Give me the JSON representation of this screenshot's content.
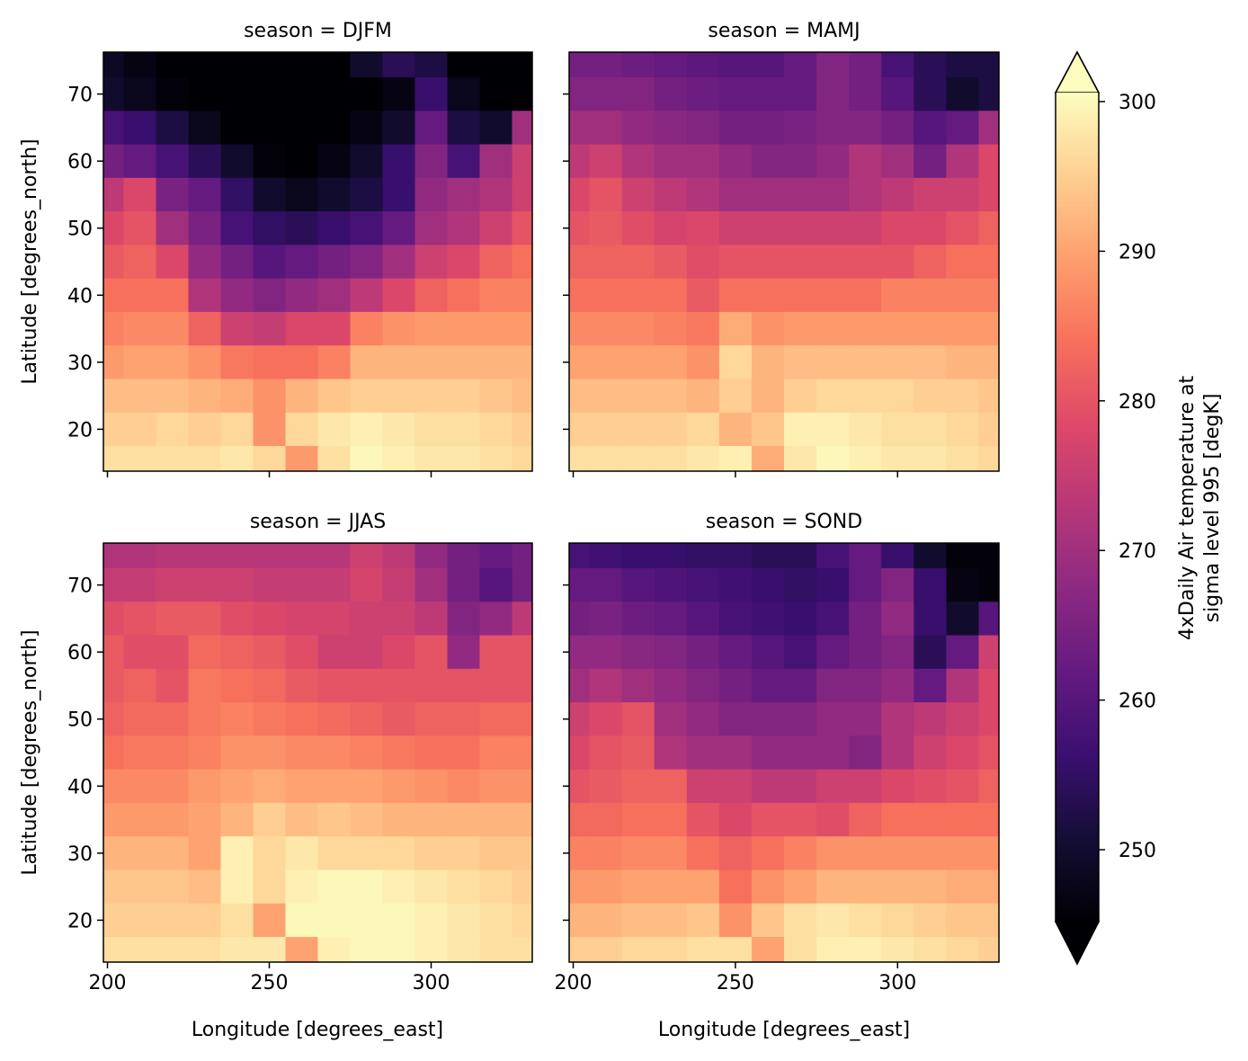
{
  "chart_data": {
    "type": "heatmap",
    "colormap": "magma",
    "vmin": 245.3,
    "vmax": 300.6,
    "extend": "both",
    "xlabel": "Longitude [degrees_east]",
    "ylabel": "Latitude [degrees_north]",
    "xticks": [
      200,
      250,
      300
    ],
    "yticks": [
      20,
      30,
      40,
      50,
      60,
      70
    ],
    "xlim": [
      198.75,
      331.25
    ],
    "ylim": [
      13.75,
      76.25
    ],
    "colorbar": {
      "label_lines": [
        "4xDaily Air temperature at",
        "sigma level 995 [degK]"
      ],
      "ticks": [
        250,
        260,
        270,
        280,
        290,
        300
      ]
    },
    "lon": [
      200,
      210,
      220,
      230,
      240,
      250,
      260,
      270,
      280,
      290,
      300,
      310,
      320,
      330
    ],
    "lat": [
      75,
      70,
      65,
      60,
      55,
      50,
      45,
      40,
      35,
      30,
      25,
      20,
      15
    ],
    "panels": [
      {
        "title": "season = DJFM",
        "values": [
          [
            249,
            247,
            245,
            245,
            245,
            245,
            245,
            245,
            250,
            254,
            252,
            245,
            245,
            245
          ],
          [
            250,
            248,
            246,
            245,
            245,
            245,
            245,
            245,
            245,
            247,
            256,
            248,
            245,
            245
          ],
          [
            258,
            256,
            252,
            248,
            245,
            245,
            245,
            245,
            247,
            250,
            262,
            252,
            250,
            270
          ],
          [
            264,
            262,
            258,
            254,
            250,
            246,
            245,
            247,
            250,
            256,
            266,
            258,
            270,
            276
          ],
          [
            274,
            278,
            265,
            262,
            255,
            250,
            248,
            250,
            252,
            256,
            268,
            270,
            272,
            276
          ],
          [
            278,
            280,
            270,
            265,
            258,
            255,
            254,
            256,
            258,
            262,
            270,
            272,
            276,
            280
          ],
          [
            281,
            282,
            278,
            268,
            264,
            260,
            262,
            264,
            266,
            270,
            276,
            278,
            282,
            284
          ],
          [
            284,
            284,
            284,
            272,
            268,
            266,
            268,
            270,
            274,
            278,
            282,
            284,
            286,
            286
          ],
          [
            286,
            287,
            287,
            282,
            276,
            275,
            278,
            278,
            286,
            288,
            289,
            289,
            289,
            289
          ],
          [
            289,
            290,
            290,
            288,
            285,
            284,
            284,
            286,
            292,
            292,
            292,
            292,
            292,
            292
          ],
          [
            293,
            293,
            293,
            292,
            291,
            288,
            292,
            294,
            295,
            295,
            295,
            295,
            294,
            293
          ],
          [
            295,
            295,
            296,
            295,
            296,
            288,
            296,
            298,
            299,
            298,
            297,
            297,
            296,
            295
          ],
          [
            297,
            297,
            297,
            297,
            298,
            296,
            289,
            297,
            300,
            299,
            298,
            298,
            297,
            296
          ]
        ]
      },
      {
        "title": "season = MAMJ",
        "values": [
          [
            264,
            264,
            263,
            262,
            261,
            260,
            260,
            262,
            266,
            264,
            258,
            254,
            252,
            252
          ],
          [
            266,
            266,
            266,
            264,
            263,
            262,
            262,
            262,
            266,
            264,
            260,
            254,
            250,
            252
          ],
          [
            270,
            270,
            268,
            267,
            266,
            264,
            264,
            265,
            266,
            266,
            264,
            260,
            262,
            270
          ],
          [
            274,
            276,
            272,
            270,
            270,
            268,
            266,
            266,
            268,
            272,
            270,
            264,
            272,
            278
          ],
          [
            278,
            280,
            276,
            274,
            272,
            270,
            270,
            270,
            270,
            272,
            274,
            276,
            276,
            278
          ],
          [
            280,
            281,
            279,
            277,
            278,
            276,
            276,
            276,
            276,
            276,
            278,
            278,
            280,
            282
          ],
          [
            282,
            282,
            282,
            281,
            279,
            280,
            280,
            280,
            280,
            280,
            280,
            282,
            284,
            284
          ],
          [
            284,
            284,
            284,
            284,
            281,
            284,
            284,
            284,
            284,
            284,
            286,
            286,
            286,
            286
          ],
          [
            287,
            287,
            287,
            286,
            285,
            291,
            288,
            289,
            289,
            289,
            289,
            289,
            289,
            289
          ],
          [
            290,
            290,
            290,
            290,
            288,
            296,
            292,
            293,
            293,
            293,
            293,
            293,
            292,
            292
          ],
          [
            293,
            293,
            293,
            293,
            292,
            295,
            292,
            295,
            296,
            296,
            296,
            295,
            295,
            294
          ],
          [
            295,
            295,
            295,
            295,
            296,
            292,
            294,
            299,
            299,
            298,
            297,
            297,
            296,
            295
          ],
          [
            297,
            297,
            297,
            297,
            298,
            299,
            291,
            298,
            300,
            299,
            298,
            298,
            297,
            296
          ]
        ]
      },
      {
        "title": "season = JJAS",
        "values": [
          [
            272,
            272,
            273,
            273,
            273,
            273,
            273,
            273,
            276,
            274,
            268,
            264,
            262,
            264
          ],
          [
            275,
            275,
            276,
            276,
            276,
            275,
            275,
            275,
            277,
            275,
            270,
            264,
            260,
            264
          ],
          [
            279,
            280,
            281,
            281,
            279,
            278,
            277,
            277,
            276,
            276,
            274,
            266,
            268,
            274
          ],
          [
            281,
            279,
            279,
            283,
            282,
            281,
            279,
            276,
            276,
            278,
            280,
            268,
            280,
            280
          ],
          [
            281,
            282,
            280,
            285,
            284,
            283,
            281,
            280,
            280,
            280,
            280,
            280,
            280,
            280
          ],
          [
            282,
            283,
            283,
            285,
            286,
            285,
            284,
            283,
            282,
            281,
            282,
            282,
            283,
            283
          ],
          [
            284,
            285,
            285,
            286,
            288,
            288,
            287,
            287,
            286,
            285,
            284,
            284,
            286,
            286
          ],
          [
            287,
            287,
            287,
            289,
            290,
            291,
            290,
            290,
            290,
            289,
            288,
            287,
            288,
            288
          ],
          [
            289,
            289,
            289,
            290,
            292,
            295,
            293,
            294,
            293,
            292,
            292,
            292,
            292,
            292
          ],
          [
            292,
            292,
            292,
            290,
            299,
            296,
            298,
            296,
            296,
            296,
            295,
            295,
            294,
            294
          ],
          [
            294,
            294,
            294,
            293,
            299,
            296,
            299,
            300,
            300,
            299,
            298,
            297,
            296,
            295
          ],
          [
            295,
            295,
            295,
            295,
            297,
            290,
            300,
            300,
            300,
            300,
            299,
            298,
            297,
            296
          ],
          [
            297,
            297,
            297,
            297,
            298,
            298,
            290,
            299,
            300,
            300,
            299,
            298,
            297,
            297
          ]
        ]
      },
      {
        "title": "season = SOND",
        "values": [
          [
            258,
            257,
            256,
            256,
            255,
            255,
            254,
            254,
            258,
            262,
            256,
            250,
            246,
            246
          ],
          [
            262,
            262,
            260,
            259,
            258,
            257,
            256,
            255,
            256,
            262,
            266,
            256,
            247,
            246
          ],
          [
            264,
            265,
            263,
            262,
            260,
            258,
            257,
            256,
            258,
            264,
            268,
            256,
            250,
            260
          ],
          [
            268,
            268,
            267,
            266,
            264,
            262,
            260,
            258,
            262,
            264,
            266,
            254,
            262,
            276
          ],
          [
            270,
            272,
            270,
            268,
            266,
            264,
            262,
            262,
            266,
            266,
            268,
            262,
            272,
            278
          ],
          [
            276,
            278,
            280,
            270,
            268,
            266,
            266,
            266,
            268,
            268,
            272,
            274,
            276,
            278
          ],
          [
            278,
            280,
            281,
            272,
            270,
            270,
            268,
            268,
            268,
            266,
            272,
            276,
            278,
            280
          ],
          [
            280,
            281,
            282,
            282,
            276,
            276,
            274,
            274,
            276,
            276,
            278,
            279,
            280,
            282
          ],
          [
            283,
            283,
            284,
            284,
            280,
            278,
            280,
            280,
            279,
            282,
            284,
            284,
            284,
            284
          ],
          [
            286,
            286,
            287,
            287,
            284,
            282,
            284,
            286,
            288,
            288,
            288,
            288,
            288,
            288
          ],
          [
            289,
            289,
            290,
            290,
            290,
            284,
            288,
            290,
            292,
            292,
            292,
            292,
            291,
            291
          ],
          [
            292,
            292,
            293,
            293,
            294,
            288,
            294,
            297,
            298,
            297,
            296,
            295,
            294,
            294
          ],
          [
            295,
            295,
            296,
            296,
            297,
            297,
            290,
            297,
            299,
            299,
            298,
            297,
            296,
            295
          ]
        ]
      }
    ]
  }
}
